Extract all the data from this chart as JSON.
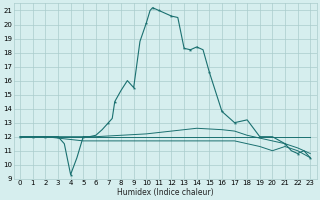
{
  "xlabel": "Humidex (Indice chaleur)",
  "bg_color": "#d6eeee",
  "grid_color": "#aacccc",
  "line_color": "#1a7070",
  "xlim": [
    -0.5,
    23.5
  ],
  "ylim": [
    9,
    21.5
  ],
  "yticks": [
    9,
    10,
    11,
    12,
    13,
    14,
    15,
    16,
    17,
    18,
    19,
    20,
    21
  ],
  "xticks": [
    0,
    1,
    2,
    3,
    4,
    5,
    6,
    7,
    8,
    9,
    10,
    11,
    12,
    13,
    14,
    15,
    16,
    17,
    18,
    19,
    20,
    21,
    22,
    23
  ],
  "curve_main": {
    "x": [
      0,
      1,
      2,
      3,
      3.5,
      4,
      4.5,
      5,
      5.5,
      6,
      6.5,
      7,
      7.3,
      7.5,
      8,
      8.5,
      9,
      9.5,
      10,
      10.3,
      10.5,
      11,
      11.5,
      12,
      12.5,
      13,
      13.5,
      14,
      14.5,
      15,
      16,
      17,
      18,
      19,
      20,
      21,
      21.5,
      22,
      22.5,
      23
    ],
    "y": [
      12,
      12,
      12,
      12,
      11.5,
      9.3,
      10.5,
      12,
      12,
      12.1,
      12.5,
      13.0,
      13.3,
      14.5,
      15.3,
      16.0,
      15.5,
      18.8,
      20.1,
      21.0,
      21.2,
      21.0,
      20.8,
      20.6,
      20.5,
      18.3,
      18.2,
      18.4,
      18.2,
      16.6,
      13.8,
      13.0,
      13.2,
      12.0,
      12.0,
      11.5,
      11.0,
      10.8,
      11.0,
      10.5
    ],
    "marker_x": [
      0,
      1,
      2,
      3,
      4,
      5,
      7,
      7.5,
      9,
      10,
      10.5,
      11,
      12,
      13,
      13.5,
      14,
      15,
      16,
      17,
      19,
      21,
      22,
      23
    ]
  },
  "curve_flat": {
    "x": [
      0,
      1,
      2,
      3,
      4,
      5,
      6,
      7,
      8,
      9,
      10,
      11,
      12,
      13,
      14,
      15,
      16,
      17,
      18,
      19,
      20,
      21,
      22,
      23
    ],
    "y": [
      12,
      12,
      12,
      12,
      12,
      12,
      12,
      12,
      12,
      12,
      12,
      12,
      12,
      12,
      12,
      12,
      12,
      12,
      12,
      12,
      12,
      12,
      12,
      12
    ]
  },
  "curve_rise": {
    "x": [
      0,
      1,
      2,
      3,
      4,
      5,
      6,
      7,
      8,
      9,
      10,
      11,
      12,
      13,
      14,
      15,
      16,
      17,
      18,
      19,
      20,
      21,
      22,
      23
    ],
    "y": [
      12,
      12,
      12,
      12,
      12,
      12,
      12,
      12.05,
      12.1,
      12.15,
      12.2,
      12.3,
      12.4,
      12.5,
      12.6,
      12.55,
      12.5,
      12.4,
      12.1,
      11.9,
      11.7,
      11.5,
      11.2,
      10.8
    ]
  },
  "curve_decline": {
    "x": [
      0,
      1,
      2,
      3,
      4,
      5,
      6,
      7,
      8,
      9,
      10,
      11,
      12,
      13,
      14,
      15,
      16,
      17,
      18,
      19,
      20,
      21,
      22,
      23
    ],
    "y": [
      12,
      12,
      12,
      11.9,
      11.8,
      11.7,
      11.7,
      11.7,
      11.7,
      11.7,
      11.7,
      11.7,
      11.7,
      11.7,
      11.7,
      11.7,
      11.7,
      11.7,
      11.5,
      11.3,
      11.0,
      11.3,
      11.0,
      10.5
    ]
  }
}
